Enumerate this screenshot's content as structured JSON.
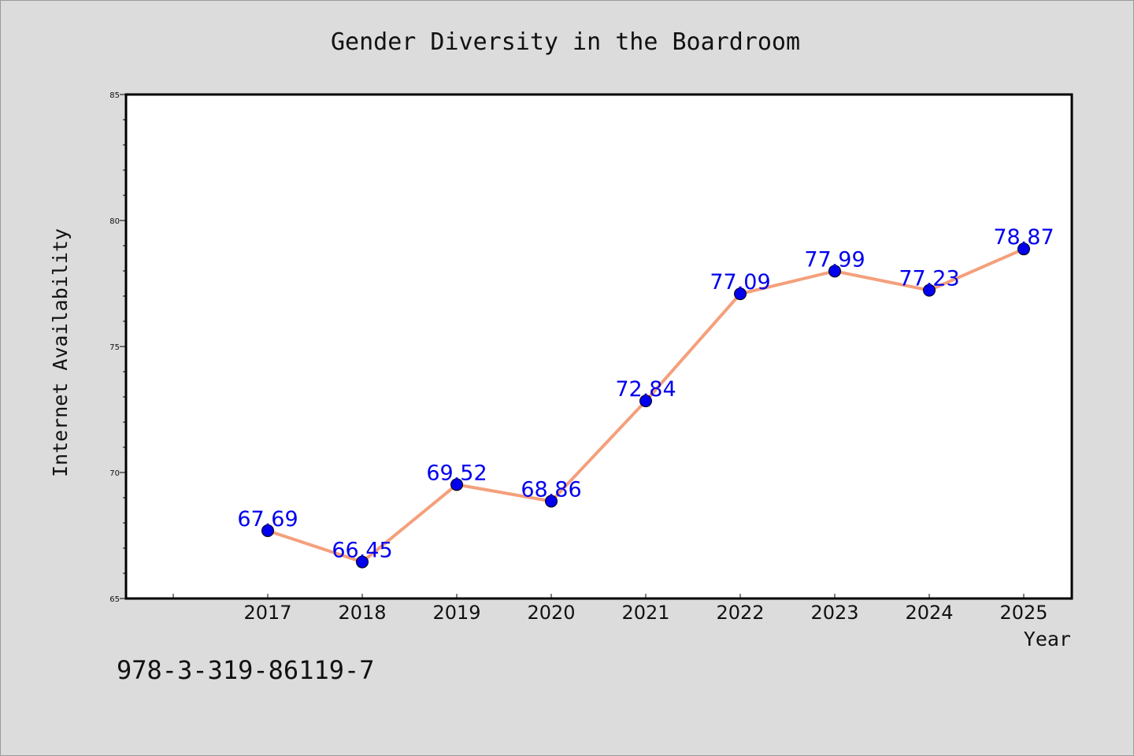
{
  "chart_data": {
    "type": "line",
    "title": "Gender Diversity in the Boardroom",
    "xlabel": "Year",
    "ylabel": "Internet Availability",
    "categories": [
      "2017",
      "2018",
      "2019",
      "2020",
      "2021",
      "2022",
      "2023",
      "2024",
      "2025"
    ],
    "series": [
      {
        "values": [
          67.69,
          66.45,
          69.52,
          68.86,
          72.84,
          77.09,
          77.99,
          77.23,
          78.87
        ],
        "labels": [
          "67.69",
          "66.45",
          "69.52",
          "68.86",
          "72.84",
          "77.09",
          "77.99",
          "77.23",
          "78.87"
        ],
        "line_color": "#f4a07c",
        "marker_color": "#0000ee",
        "label_color": "#0000ee"
      }
    ],
    "ylim": [
      65,
      85
    ],
    "yticks": [
      "65",
      "70",
      "75",
      "80",
      "85"
    ],
    "grid": false,
    "legend": "none",
    "background": "#dcdcdc",
    "plot_background": "#ffffff"
  },
  "footer": {
    "isbn": "978-3-319-86119-7"
  }
}
